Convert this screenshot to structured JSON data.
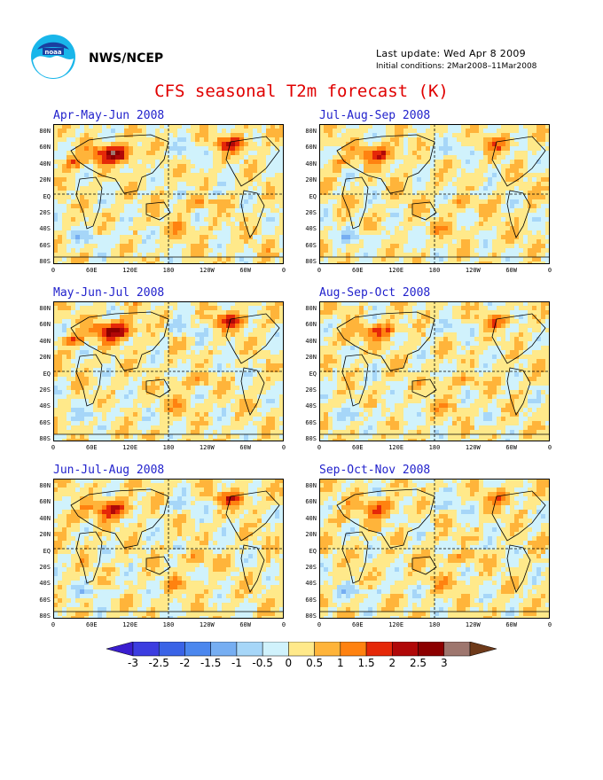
{
  "header": {
    "org": "NWS/NCEP",
    "last_update": "Last update: Wed Apr 8 2009",
    "initial_conditions": "Initial conditions: 2Mar2008–11Mar2008",
    "title": "CFS seasonal T2m forecast (K)"
  },
  "panels": [
    {
      "title": "Apr-May-Jun 2008",
      "intensity": 1.0,
      "seed": 11
    },
    {
      "title": "Jul-Aug-Sep 2008",
      "intensity": 0.6,
      "seed": 23
    },
    {
      "title": "May-Jun-Jul 2008",
      "intensity": 0.95,
      "seed": 37
    },
    {
      "title": "Aug-Sep-Oct 2008",
      "intensity": 0.55,
      "seed": 41
    },
    {
      "title": "Jun-Jul-Aug 2008",
      "intensity": 0.75,
      "seed": 53
    },
    {
      "title": "Sep-Oct-Nov 2008",
      "intensity": 0.5,
      "seed": 67
    }
  ],
  "axes": {
    "lat_labels": [
      "80N",
      "60N",
      "40N",
      "20N",
      "EQ",
      "20S",
      "40S",
      "60S",
      "80S"
    ],
    "lon_labels": [
      "0",
      "60E",
      "120E",
      "180",
      "120W",
      "60W",
      "0"
    ]
  },
  "colorbar": {
    "labels": [
      "-3",
      "-2.5",
      "-2",
      "-1.5",
      "-1",
      "-0.5",
      "0",
      "0.5",
      "1",
      "1.5",
      "2",
      "2.5",
      "3"
    ],
    "colors": [
      "#3a1ecf",
      "#3c3de0",
      "#3a63e6",
      "#4b87ee",
      "#76aef2",
      "#a6d6f8",
      "#d0f2fc",
      "#ffe98a",
      "#ffb43a",
      "#ff8210",
      "#e52808",
      "#b00808",
      "#8c0000",
      "#9e766e",
      "#6e3a1a"
    ]
  },
  "icons": {
    "logo": "noaa-logo-icon"
  }
}
